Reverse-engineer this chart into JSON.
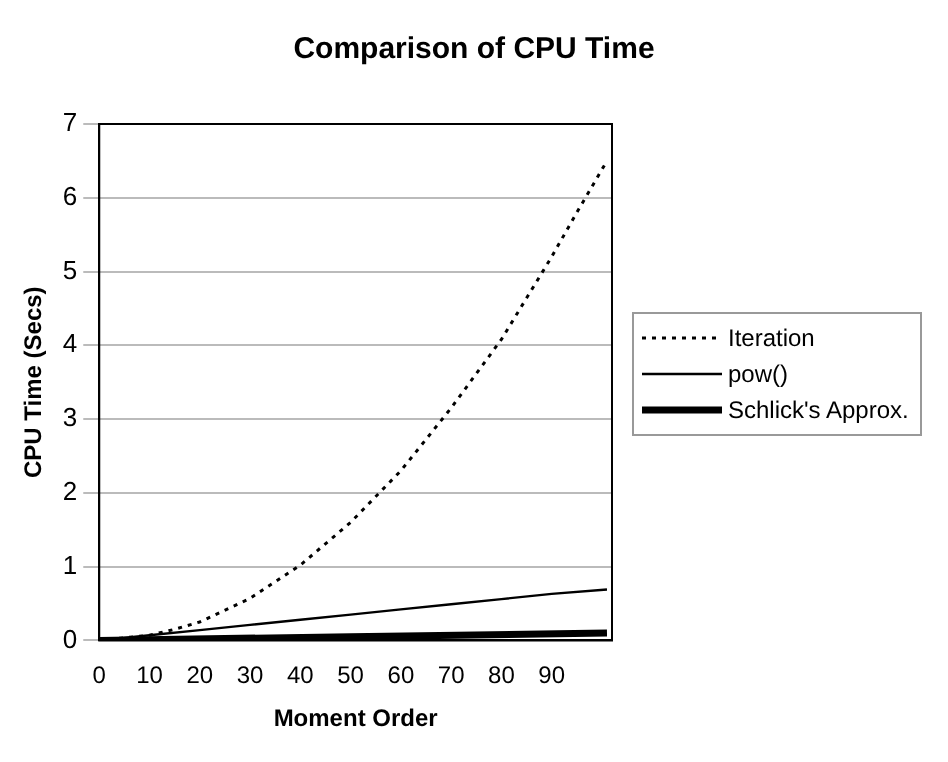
{
  "chart_data": {
    "type": "line",
    "title": "Comparison of CPU Time",
    "xlabel": "Moment Order",
    "ylabel": "CPU Time (Secs)",
    "xlim": [
      0,
      102
    ],
    "xticks": [
      0,
      10,
      20,
      30,
      40,
      50,
      60,
      70,
      80,
      90
    ],
    "ylim": [
      0,
      7
    ],
    "yticks": [
      0,
      1,
      2,
      3,
      4,
      5,
      6,
      7
    ],
    "grid": "y",
    "legend": "right",
    "marker": "none",
    "series": [
      {
        "name": "Iteration",
        "color": "#000000",
        "line_style": "dotted",
        "x": [
          0,
          10,
          15,
          20,
          30,
          40,
          50,
          55,
          60,
          70,
          80,
          90,
          95,
          101
        ],
        "values": [
          0,
          0.07,
          0.15,
          0.25,
          0.57,
          1.02,
          1.6,
          1.95,
          2.3,
          3.15,
          4.08,
          5.2,
          5.8,
          6.5
        ]
      },
      {
        "name": "pow()",
        "color": "#000000",
        "line_style": "solid",
        "x": [
          0,
          10,
          20,
          30,
          40,
          50,
          60,
          70,
          80,
          90,
          101
        ],
        "values": [
          0,
          0.07,
          0.14,
          0.21,
          0.28,
          0.35,
          0.42,
          0.49,
          0.56,
          0.63,
          0.69
        ]
      },
      {
        "name": "Schlick's Approx.",
        "color": "#000000",
        "line_style": "solid",
        "x": [
          0,
          50,
          101
        ],
        "values": [
          0,
          0.05,
          0.1
        ]
      }
    ]
  }
}
